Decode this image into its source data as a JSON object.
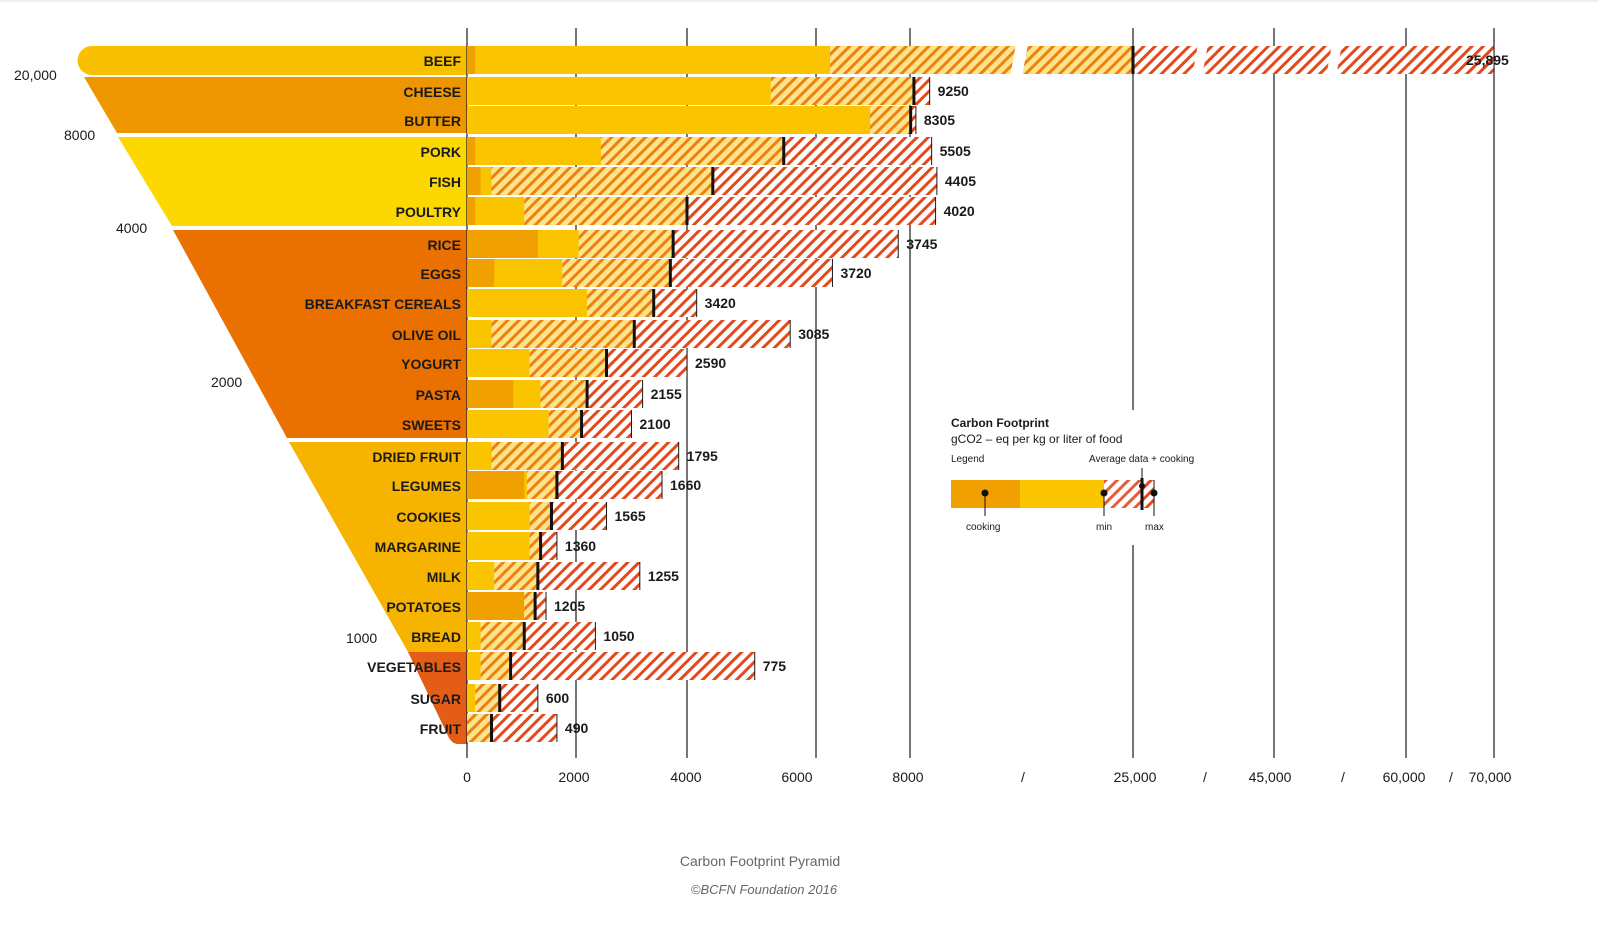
{
  "chart_data": {
    "type": "bar",
    "title": "",
    "caption": "Carbon Footprint Pyramid",
    "credit": "©BCFN Foundation 2016",
    "x_ticks": [
      "0",
      "2000",
      "4000",
      "6000",
      "8000",
      "/",
      "25,000",
      "/",
      "45,000",
      "/",
      "60,000",
      "/",
      "70,000"
    ],
    "pyramid_labels": [
      "20,000",
      "8000",
      "4000",
      "2000",
      "1000"
    ],
    "rows": [
      {
        "label": "BEEF",
        "value": 25895,
        "value_label": "25,895",
        "cooking": 150,
        "min": 6300,
        "avg": 25000,
        "max": 70000
      },
      {
        "label": "CHEESE",
        "value": 9250,
        "value_label": "9250",
        "cooking": 0,
        "min": 5300,
        "avg": 8300,
        "max": 9500
      },
      {
        "label": "BUTTER",
        "value": 8305,
        "value_label": "8305",
        "cooking": 0,
        "min": 7150,
        "avg": 8050,
        "max": 8450
      },
      {
        "label": "PORK",
        "value": 5505,
        "value_label": "5505",
        "cooking": 150,
        "min": 2450,
        "avg": 5500,
        "max": 9650
      },
      {
        "label": "FISH",
        "value": 4405,
        "value_label": "4405",
        "cooking": 250,
        "min": 450,
        "avg": 4400,
        "max": 10050
      },
      {
        "label": "POULTRY",
        "value": 4020,
        "value_label": "4020",
        "cooking": 150,
        "min": 1050,
        "avg": 4000,
        "max": 9950
      },
      {
        "label": "RICE",
        "value": 3745,
        "value_label": "3745",
        "cooking": 1300,
        "min": 2050,
        "avg": 3750,
        "max": 7750
      },
      {
        "label": "EGGS",
        "value": 3720,
        "value_label": "3720",
        "cooking": 500,
        "min": 1750,
        "avg": 3700,
        "max": 6350
      },
      {
        "label": "BREAKFAST CEREALS",
        "value": 3420,
        "value_label": "3420",
        "cooking": 0,
        "min": 2200,
        "avg": 3400,
        "max": 4150
      },
      {
        "label": "OLIVE OIL",
        "value": 3085,
        "value_label": "3085",
        "cooking": 0,
        "min": 450,
        "avg": 3050,
        "max": 5600
      },
      {
        "label": "YOGURT",
        "value": 2590,
        "value_label": "2590",
        "cooking": 0,
        "min": 1150,
        "avg": 2550,
        "max": 4000
      },
      {
        "label": "PASTA",
        "value": 2155,
        "value_label": "2155",
        "cooking": 850,
        "min": 1350,
        "avg": 2200,
        "max": 3200
      },
      {
        "label": "SWEETS",
        "value": 2100,
        "value_label": "2100",
        "cooking": 0,
        "min": 1500,
        "avg": 2100,
        "max": 3000
      },
      {
        "label": "DRIED FRUIT",
        "value": 1795,
        "value_label": "1795",
        "cooking": 0,
        "min": 450,
        "avg": 1750,
        "max": 3850
      },
      {
        "label": "LEGUMES",
        "value": 1660,
        "value_label": "1660",
        "cooking": 1050,
        "min": 1100,
        "avg": 1650,
        "max": 3550
      },
      {
        "label": "COOKIES",
        "value": 1565,
        "value_label": "1565",
        "cooking": 0,
        "min": 1150,
        "avg": 1550,
        "max": 2550
      },
      {
        "label": "MARGARINE",
        "value": 1360,
        "value_label": "1360",
        "cooking": 0,
        "min": 1150,
        "avg": 1350,
        "max": 1650
      },
      {
        "label": "MILK",
        "value": 1255,
        "value_label": "1255",
        "cooking": 0,
        "min": 500,
        "avg": 1300,
        "max": 3150
      },
      {
        "label": "POTATOES",
        "value": 1205,
        "value_label": "1205",
        "cooking": 1050,
        "min": 1050,
        "avg": 1250,
        "max": 1450
      },
      {
        "label": "BREAD",
        "value": 1050,
        "value_label": "1050",
        "cooking": 0,
        "min": 250,
        "avg": 1050,
        "max": 2350
      },
      {
        "label": "VEGETABLES",
        "value": 775,
        "value_label": "775",
        "cooking": 0,
        "min": 250,
        "avg": 800,
        "max": 5050
      },
      {
        "label": "SUGAR",
        "value": 600,
        "value_label": "600",
        "cooking": 0,
        "min": 150,
        "avg": 600,
        "max": 1300
      },
      {
        "label": "FRUIT",
        "value": 490,
        "value_label": "490",
        "cooking": 0,
        "min": 0,
        "avg": 450,
        "max": 1650
      }
    ],
    "legend": {
      "title": "Carbon Footprint",
      "subtitle": "gCO2 – eq per kg or liter of food",
      "legend_label": "Legend",
      "avg_label": "Average data + cooking",
      "cooking_label": "cooking",
      "min_label": "min",
      "max_label": "max"
    },
    "colors": {
      "cooking": "#f0a000",
      "average": "#fac400",
      "hatch": "#e24a1e",
      "pyramid_top": "#f8c000",
      "pyramid_upper": "#ee9600",
      "pyramid_mid": "#fcd800",
      "pyramid_low": "#ea7000",
      "pyramid_lower": "#f6b400",
      "pyramid_tip": "#e35d16"
    }
  }
}
